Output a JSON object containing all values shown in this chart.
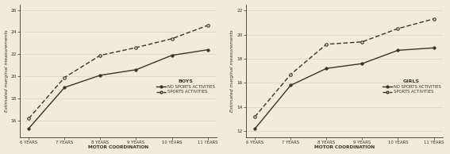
{
  "x_labels": [
    "6 YEARS",
    "7 YEARS",
    "8 YEARS",
    "9 YEARS",
    "10 YEARS",
    "11 YEARS"
  ],
  "x_positions": [
    0,
    1,
    2,
    3,
    4,
    5
  ],
  "boys_no_sports": [
    15.3,
    19.0,
    20.1,
    20.6,
    21.9,
    22.4
  ],
  "boys_sports": [
    16.2,
    19.9,
    21.9,
    22.6,
    23.4,
    24.6
  ],
  "girls_no_sports": [
    12.2,
    15.8,
    17.2,
    17.6,
    18.7,
    18.9
  ],
  "girls_sports": [
    13.2,
    16.7,
    19.2,
    19.4,
    20.5,
    21.3
  ],
  "boys_ylim": [
    14.5,
    26.5
  ],
  "boys_yticks": [
    16,
    18,
    20,
    22,
    24,
    26
  ],
  "girls_ylim": [
    11.5,
    22.5
  ],
  "girls_yticks": [
    12,
    14,
    16,
    18,
    20,
    22
  ],
  "boys_title": "BOYS",
  "girls_title": "GIRLS",
  "legend_no_sports": "NO SPORTS ACTIVITIES",
  "legend_sports": "SPORTS ACTIVITIES",
  "xlabel": "MOTOR COORDINATION",
  "ylabel": "Estimated marginal measurements",
  "line_color": "#3a3520",
  "bg_color": "#f0ecd8",
  "grid_color": "#d8d4c0",
  "white": "#ffffff"
}
